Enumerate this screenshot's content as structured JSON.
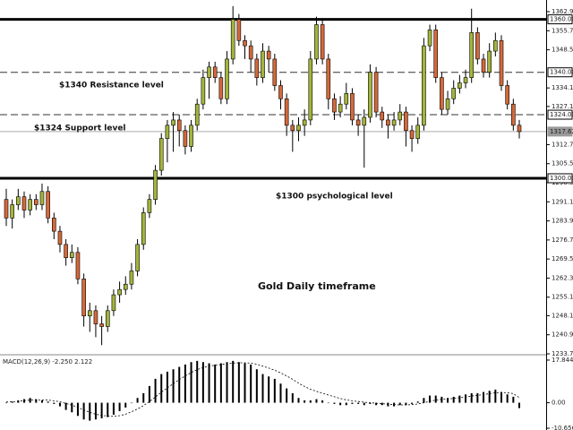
{
  "chart_data": {
    "type": "candlestick",
    "up_color": "#a4b43c",
    "down_color": "#d4693a",
    "ylim": [
      1233.7,
      1367.3
    ],
    "yticks": [
      {
        "value": 1362.9,
        "label": "1362.90"
      },
      {
        "value": 1355.7,
        "label": "1355.70"
      },
      {
        "value": 1348.5,
        "label": "1348.50"
      },
      {
        "value": 1334.1,
        "label": "1334.10"
      },
      {
        "value": 1327.1,
        "label": "1327.10"
      },
      {
        "value": 1312.7,
        "label": "1312.70"
      },
      {
        "value": 1305.5,
        "label": "1305.50"
      },
      {
        "value": 1298.3,
        "label": "1298.30"
      },
      {
        "value": 1291.1,
        "label": "1291.10"
      },
      {
        "value": 1283.9,
        "label": "1283.90"
      },
      {
        "value": 1276.7,
        "label": "1276.70"
      },
      {
        "value": 1269.5,
        "label": "1269.50"
      },
      {
        "value": 1262.3,
        "label": "1262.30"
      },
      {
        "value": 1255.1,
        "label": "1255.10"
      },
      {
        "value": 1248.1,
        "label": "1248.10"
      },
      {
        "value": 1240.9,
        "label": "1240.90"
      },
      {
        "value": 1233.7,
        "label": "1233.70"
      }
    ],
    "levels": [
      {
        "value": 1360,
        "label": "1360.00",
        "style": "thick"
      },
      {
        "value": 1340,
        "label": "1340.00",
        "style": "dashed"
      },
      {
        "value": 1324,
        "label": "1324.00",
        "style": "dashed"
      },
      {
        "value": 1317.62,
        "label": "1317.62",
        "style": "current"
      },
      {
        "value": 1300,
        "label": "1300.00",
        "style": "thick"
      }
    ],
    "annotations": [
      "$1340 Resistance level",
      "$1324 Support level",
      "$1300 psychological level",
      "Gold Daily timeframe"
    ],
    "candles": [
      [
        1292,
        1296,
        1282,
        1285
      ],
      [
        1285,
        1292,
        1281,
        1290
      ],
      [
        1290,
        1296,
        1288,
        1293
      ],
      [
        1293,
        1295,
        1285,
        1288
      ],
      [
        1288,
        1294,
        1286,
        1292
      ],
      [
        1292,
        1294,
        1288,
        1290
      ],
      [
        1290,
        1298,
        1288,
        1295
      ],
      [
        1295,
        1297,
        1283,
        1285
      ],
      [
        1285,
        1287,
        1277,
        1280
      ],
      [
        1280,
        1282,
        1272,
        1275
      ],
      [
        1275,
        1277,
        1267,
        1270
      ],
      [
        1270,
        1275,
        1268,
        1272
      ],
      [
        1272,
        1274,
        1260,
        1262
      ],
      [
        1262,
        1264,
        1244,
        1248
      ],
      [
        1248,
        1253,
        1242,
        1250
      ],
      [
        1250,
        1252,
        1240,
        1245
      ],
      [
        1245,
        1248,
        1237,
        1244
      ],
      [
        1244,
        1252,
        1242,
        1250
      ],
      [
        1250,
        1258,
        1248,
        1256
      ],
      [
        1256,
        1261,
        1253,
        1258
      ],
      [
        1258,
        1263,
        1256,
        1260
      ],
      [
        1260,
        1268,
        1258,
        1265
      ],
      [
        1265,
        1277,
        1263,
        1275
      ],
      [
        1275,
        1289,
        1273,
        1287
      ],
      [
        1287,
        1294,
        1285,
        1292
      ],
      [
        1292,
        1305,
        1290,
        1303
      ],
      [
        1303,
        1317,
        1301,
        1315
      ],
      [
        1315,
        1322,
        1306,
        1320
      ],
      [
        1320,
        1325,
        1310,
        1322
      ],
      [
        1322,
        1324,
        1312,
        1318
      ],
      [
        1318,
        1320,
        1309,
        1312
      ],
      [
        1312,
        1322,
        1310,
        1320
      ],
      [
        1320,
        1330,
        1318,
        1328
      ],
      [
        1328,
        1341,
        1326,
        1338
      ],
      [
        1338,
        1344,
        1330,
        1342
      ],
      [
        1342,
        1344,
        1336,
        1338
      ],
      [
        1338,
        1340,
        1328,
        1330
      ],
      [
        1330,
        1348,
        1328,
        1345
      ],
      [
        1345,
        1365,
        1343,
        1360
      ],
      [
        1360,
        1362,
        1350,
        1352
      ],
      [
        1352,
        1354,
        1345,
        1350
      ],
      [
        1350,
        1352,
        1340,
        1345
      ],
      [
        1345,
        1347,
        1335,
        1338
      ],
      [
        1338,
        1351,
        1336,
        1348
      ],
      [
        1348,
        1350,
        1340,
        1345
      ],
      [
        1345,
        1347,
        1333,
        1335
      ],
      [
        1335,
        1337,
        1326,
        1330
      ],
      [
        1330,
        1332,
        1316,
        1320
      ],
      [
        1320,
        1322,
        1310,
        1318
      ],
      [
        1318,
        1323,
        1314,
        1320
      ],
      [
        1320,
        1326,
        1316,
        1322
      ],
      [
        1322,
        1348,
        1320,
        1345
      ],
      [
        1345,
        1361,
        1343,
        1358
      ],
      [
        1358,
        1360,
        1343,
        1345
      ],
      [
        1345,
        1347,
        1326,
        1330
      ],
      [
        1330,
        1332,
        1322,
        1325
      ],
      [
        1325,
        1331,
        1323,
        1328
      ],
      [
        1328,
        1336,
        1326,
        1332
      ],
      [
        1332,
        1334,
        1320,
        1322
      ],
      [
        1322,
        1324,
        1316,
        1320
      ],
      [
        1320,
        1326,
        1304,
        1323
      ],
      [
        1323,
        1343,
        1321,
        1340
      ],
      [
        1340,
        1342,
        1323,
        1325
      ],
      [
        1325,
        1327,
        1319,
        1322
      ],
      [
        1322,
        1324,
        1315,
        1320
      ],
      [
        1320,
        1325,
        1318,
        1322
      ],
      [
        1322,
        1328,
        1320,
        1325
      ],
      [
        1325,
        1327,
        1312,
        1318
      ],
      [
        1318,
        1320,
        1310,
        1315
      ],
      [
        1315,
        1323,
        1313,
        1320
      ],
      [
        1320,
        1353,
        1318,
        1350
      ],
      [
        1350,
        1358,
        1348,
        1356
      ],
      [
        1356,
        1358,
        1336,
        1338
      ],
      [
        1338,
        1340,
        1324,
        1326
      ],
      [
        1326,
        1333,
        1324,
        1330
      ],
      [
        1330,
        1337,
        1328,
        1334
      ],
      [
        1334,
        1339,
        1332,
        1336
      ],
      [
        1336,
        1341,
        1334,
        1338
      ],
      [
        1338,
        1364,
        1336,
        1355
      ],
      [
        1355,
        1357,
        1343,
        1345
      ],
      [
        1345,
        1347,
        1338,
        1340
      ],
      [
        1340,
        1351,
        1338,
        1348
      ],
      [
        1348,
        1355,
        1346,
        1352
      ],
      [
        1352,
        1354,
        1333,
        1335
      ],
      [
        1335,
        1337,
        1326,
        1328
      ],
      [
        1328,
        1330,
        1318,
        1320
      ],
      [
        1320,
        1322,
        1315,
        1317.62
      ]
    ],
    "macd": {
      "label": "MACD(12,26,9) -2.250 2.122",
      "ylim": [
        -11.4,
        19.7
      ],
      "yticks": [
        17.844,
        {
          "value": 0,
          "label": "0.00"
        },
        -10.656
      ],
      "hist": [
        0,
        0.5,
        1,
        1.5,
        2,
        1.5,
        1,
        0.5,
        -0.5,
        -1.5,
        -3,
        -4,
        -5.5,
        -7,
        -7.5,
        -7,
        -6.5,
        -6,
        -5,
        -3.5,
        -2,
        0,
        2,
        4,
        7,
        10,
        12,
        13,
        14,
        15,
        16,
        17,
        17.5,
        17,
        16.5,
        16,
        16.5,
        17,
        17.5,
        17,
        16.5,
        16,
        14,
        12,
        11,
        10,
        8,
        6,
        4,
        2,
        1,
        1,
        1.5,
        1,
        0,
        -0.5,
        -1,
        -1,
        -0.5,
        -0.5,
        -1,
        -0.5,
        -1,
        -1,
        -1.5,
        -1.5,
        -1,
        -1,
        -0.5,
        0.5,
        2,
        3,
        3,
        2.5,
        2,
        2.5,
        3,
        3.5,
        4,
        4,
        4.5,
        5,
        5.5,
        4.5,
        3.5,
        2.5,
        -2.25
      ],
      "signal": [
        0.3,
        0.4,
        0.6,
        0.9,
        1.1,
        1.2,
        1.2,
        1.1,
        0.8,
        0.4,
        -0.3,
        -1,
        -2,
        -3,
        -4,
        -4.8,
        -5.3,
        -5.6,
        -5.7,
        -5.4,
        -4.8,
        -3.8,
        -2.6,
        -1.2,
        0.5,
        2.4,
        4.4,
        6.2,
        8,
        9.7,
        11.2,
        12.6,
        13.8,
        14.7,
        15.3,
        15.7,
        16,
        16.3,
        16.6,
        16.7,
        16.7,
        16.6,
        16.1,
        15.3,
        14.5,
        13.6,
        12.5,
        11.2,
        9.8,
        8.2,
        6.8,
        5.6,
        4.8,
        4,
        3.2,
        2.5,
        1.8,
        1.2,
        0.8,
        0.5,
        0.2,
        0,
        -0.2,
        -0.4,
        -0.6,
        -0.8,
        -0.9,
        -0.9,
        -0.8,
        -0.5,
        0,
        0.6,
        1.1,
        1.4,
        1.6,
        1.8,
        2.1,
        2.4,
        2.8,
        3.1,
        3.4,
        3.8,
        4.2,
        4.3,
        4.2,
        3.8,
        2.122
      ]
    }
  }
}
